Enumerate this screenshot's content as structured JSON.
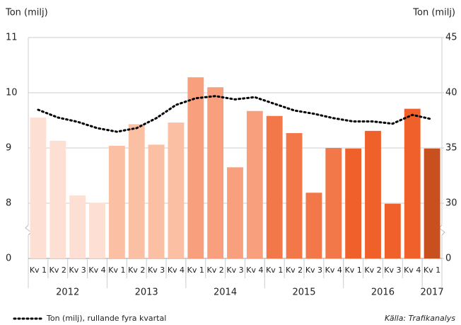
{
  "chart_data": {
    "type": "bar",
    "y_label": "Ton (milj)",
    "y2_label": "Ton (milj)",
    "source": "Källa: Trafikanalys",
    "categories": [
      "Kv 1",
      "Kv 2",
      "Kv 3",
      "Kv 4",
      "Kv 1",
      "Kv 2",
      "Kv 3",
      "Kv 4",
      "Kv 1",
      "Kv 2",
      "Kv 3",
      "Kv 4",
      "Kv 1",
      "Kv 2",
      "Kv 3",
      "Kv 4",
      "Kv 1",
      "Kv 2",
      "Kv 3",
      "Kv 4",
      "Kv 1"
    ],
    "groups": [
      "2012",
      "2013",
      "2014",
      "2015",
      "2016",
      "2017"
    ],
    "series": [
      {
        "values": [
          9.55,
          9.13,
          8.14,
          8.01,
          9.04,
          9.43,
          9.06,
          9.46,
          10.28,
          10.1,
          8.65,
          9.67,
          9.58,
          9.27,
          8.19,
          9.0,
          8.99,
          9.31,
          7.92,
          9.71,
          8.99
        ],
        "colors": [
          "#fde0d3",
          "#fde0d3",
          "#fde0d3",
          "#fde0d3",
          "#fbbfa3",
          "#fbbfa3",
          "#fbbfa3",
          "#fbbfa3",
          "#f8a07e",
          "#f8a07e",
          "#f8a07e",
          "#f8a07e",
          "#f2784a",
          "#f2784a",
          "#f2784a",
          "#f2784a",
          "#f0602a",
          "#f0602a",
          "#f0602a",
          "#f0602a",
          "#c8501e"
        ]
      },
      {
        "type": "line",
        "name": "Ton (milj), rullande fyra kvartal",
        "color": "#000000",
        "axis": "y2",
        "values": [
          38.46,
          37.76,
          37.37,
          36.8,
          36.47,
          36.8,
          37.7,
          38.9,
          39.5,
          39.7,
          39.4,
          39.6,
          39.0,
          38.4,
          38.1,
          37.7,
          37.4,
          37.4,
          37.2,
          38.0,
          37.6
        ]
      }
    ],
    "ylim": [
      0,
      11
    ],
    "yticks": [
      0,
      8,
      9,
      10,
      11
    ],
    "y2lim": [
      0,
      45
    ],
    "y2ticks": [
      0,
      30,
      35,
      40,
      45
    ],
    "grid": true
  }
}
